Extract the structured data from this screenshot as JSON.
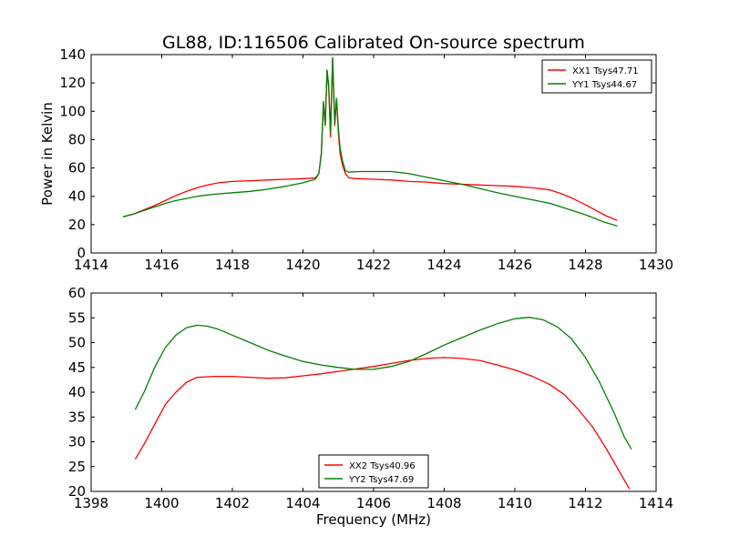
{
  "figure_title": "GL88, ID:116506 Calibrated On-source spectrum",
  "colors": {
    "XX": "#ff0000",
    "YY": "#008000",
    "axes": "#000000",
    "background": "#ffffff"
  },
  "chart_data": [
    {
      "type": "line",
      "title": "GL88, ID:116506 Calibrated On-source spectrum",
      "xlabel": "",
      "ylabel": "Power in Kelvin",
      "xlim": [
        1414,
        1430
      ],
      "ylim": [
        0,
        140
      ],
      "xticks": [
        1414,
        1416,
        1418,
        1420,
        1422,
        1424,
        1426,
        1428,
        1430
      ],
      "yticks": [
        0,
        20,
        40,
        60,
        80,
        100,
        120,
        140
      ],
      "grid": false,
      "legend_position": "top-right",
      "series": [
        {
          "name": "XX1 Tsys47.71",
          "color": "#ff0000",
          "points": [
            [
              1414.9,
              25.5
            ],
            [
              1415.2,
              27.5
            ],
            [
              1415.5,
              30.5
            ],
            [
              1415.8,
              33.5
            ],
            [
              1416.1,
              37
            ],
            [
              1416.4,
              40.5
            ],
            [
              1416.7,
              43.5
            ],
            [
              1417.0,
              46
            ],
            [
              1417.3,
              48
            ],
            [
              1417.6,
              49.5
            ],
            [
              1418.0,
              50.5
            ],
            [
              1418.5,
              51
            ],
            [
              1419.0,
              51.5
            ],
            [
              1419.5,
              52
            ],
            [
              1420.0,
              52.5
            ],
            [
              1420.35,
              53
            ],
            [
              1420.45,
              56
            ],
            [
              1420.52,
              70
            ],
            [
              1420.58,
              106
            ],
            [
              1420.63,
              90
            ],
            [
              1420.68,
              129
            ],
            [
              1420.73,
              115
            ],
            [
              1420.78,
              82
            ],
            [
              1420.84,
              137
            ],
            [
              1420.9,
              90
            ],
            [
              1420.95,
              109
            ],
            [
              1421.0,
              85
            ],
            [
              1421.05,
              70
            ],
            [
              1421.12,
              62
            ],
            [
              1421.2,
              56
            ],
            [
              1421.3,
              53
            ],
            [
              1421.5,
              52.5
            ],
            [
              1422.0,
              52
            ],
            [
              1422.5,
              51.5
            ],
            [
              1423.0,
              50.5
            ],
            [
              1423.5,
              50
            ],
            [
              1424.0,
              49
            ],
            [
              1424.5,
              48.5
            ],
            [
              1425.0,
              48
            ],
            [
              1425.5,
              47.5
            ],
            [
              1426.0,
              47
            ],
            [
              1426.5,
              46
            ],
            [
              1427.0,
              44.5
            ],
            [
              1427.3,
              42
            ],
            [
              1427.6,
              39
            ],
            [
              1428.0,
              34
            ],
            [
              1428.3,
              30
            ],
            [
              1428.6,
              26
            ],
            [
              1428.9,
              23
            ]
          ]
        },
        {
          "name": "YY1 Tsys44.67",
          "color": "#008000",
          "points": [
            [
              1414.9,
              25.5
            ],
            [
              1415.2,
              27.5
            ],
            [
              1415.5,
              30
            ],
            [
              1415.8,
              32.5
            ],
            [
              1416.1,
              35
            ],
            [
              1416.4,
              37
            ],
            [
              1416.7,
              38.5
            ],
            [
              1417.0,
              40
            ],
            [
              1417.5,
              41.5
            ],
            [
              1418.0,
              42.5
            ],
            [
              1418.5,
              43.5
            ],
            [
              1419.0,
              45
            ],
            [
              1419.5,
              47
            ],
            [
              1420.0,
              49.5
            ],
            [
              1420.35,
              52
            ],
            [
              1420.45,
              56
            ],
            [
              1420.52,
              70
            ],
            [
              1420.58,
              107
            ],
            [
              1420.63,
              90
            ],
            [
              1420.68,
              129
            ],
            [
              1420.73,
              118
            ],
            [
              1420.78,
              85
            ],
            [
              1420.84,
              138
            ],
            [
              1420.9,
              92
            ],
            [
              1420.95,
              109
            ],
            [
              1421.0,
              88
            ],
            [
              1421.05,
              74
            ],
            [
              1421.12,
              65
            ],
            [
              1421.2,
              58
            ],
            [
              1421.3,
              57
            ],
            [
              1421.6,
              57.5
            ],
            [
              1422.0,
              57.5
            ],
            [
              1422.5,
              57.5
            ],
            [
              1423.0,
              56
            ],
            [
              1423.5,
              53.5
            ],
            [
              1424.0,
              51
            ],
            [
              1424.5,
              48.5
            ],
            [
              1425.0,
              45.5
            ],
            [
              1425.5,
              42.5
            ],
            [
              1426.0,
              40
            ],
            [
              1426.5,
              37.5
            ],
            [
              1427.0,
              35
            ],
            [
              1427.5,
              31
            ],
            [
              1428.0,
              27
            ],
            [
              1428.5,
              22
            ],
            [
              1428.9,
              19
            ]
          ]
        }
      ]
    },
    {
      "type": "line",
      "title": "",
      "xlabel": "Frequency (MHz)",
      "ylabel": "",
      "xlim": [
        1398,
        1414
      ],
      "ylim": [
        20,
        60
      ],
      "xticks": [
        1398,
        1400,
        1402,
        1404,
        1406,
        1408,
        1410,
        1412,
        1414
      ],
      "yticks": [
        20,
        25,
        30,
        35,
        40,
        45,
        50,
        55,
        60
      ],
      "grid": false,
      "legend_position": "lower-center",
      "series": [
        {
          "name": "XX2 Tsys40.96",
          "color": "#ff0000",
          "points": [
            [
              1399.25,
              26.5
            ],
            [
              1399.5,
              29.5
            ],
            [
              1399.8,
              33.5
            ],
            [
              1400.1,
              37.5
            ],
            [
              1400.4,
              40
            ],
            [
              1400.7,
              42
            ],
            [
              1401.0,
              43
            ],
            [
              1401.5,
              43.2
            ],
            [
              1402.0,
              43.2
            ],
            [
              1402.5,
              43
            ],
            [
              1403.0,
              42.8
            ],
            [
              1403.5,
              42.9
            ],
            [
              1404.0,
              43.3
            ],
            [
              1404.5,
              43.7
            ],
            [
              1405.0,
              44.2
            ],
            [
              1405.5,
              44.7
            ],
            [
              1406.0,
              45.2
            ],
            [
              1406.5,
              45.8
            ],
            [
              1407.0,
              46.4
            ],
            [
              1407.5,
              46.8
            ],
            [
              1408.0,
              47
            ],
            [
              1408.5,
              46.8
            ],
            [
              1409.0,
              46.4
            ],
            [
              1409.5,
              45.5
            ],
            [
              1410.0,
              44.5
            ],
            [
              1410.5,
              43.2
            ],
            [
              1411.0,
              41.5
            ],
            [
              1411.4,
              39.5
            ],
            [
              1411.8,
              36.5
            ],
            [
              1412.2,
              33
            ],
            [
              1412.6,
              28.5
            ],
            [
              1413.0,
              23.5
            ],
            [
              1413.25,
              20.5
            ]
          ]
        },
        {
          "name": "YY2 Tsys47.69",
          "color": "#008000",
          "points": [
            [
              1399.25,
              36.5
            ],
            [
              1399.5,
              40
            ],
            [
              1399.8,
              45
            ],
            [
              1400.1,
              49
            ],
            [
              1400.4,
              51.5
            ],
            [
              1400.7,
              53
            ],
            [
              1401.0,
              53.5
            ],
            [
              1401.3,
              53.3
            ],
            [
              1401.6,
              52.7
            ],
            [
              1402.0,
              51.5
            ],
            [
              1402.5,
              50
            ],
            [
              1403.0,
              48.5
            ],
            [
              1403.5,
              47.3
            ],
            [
              1404.0,
              46.2
            ],
            [
              1404.5,
              45.5
            ],
            [
              1405.0,
              45
            ],
            [
              1405.5,
              44.6
            ],
            [
              1406.0,
              44.6
            ],
            [
              1406.5,
              45.2
            ],
            [
              1407.0,
              46.2
            ],
            [
              1407.5,
              47.8
            ],
            [
              1408.0,
              49.5
            ],
            [
              1408.5,
              51
            ],
            [
              1409.0,
              52.5
            ],
            [
              1409.5,
              53.8
            ],
            [
              1410.0,
              54.8
            ],
            [
              1410.4,
              55.1
            ],
            [
              1410.8,
              54.6
            ],
            [
              1411.2,
              53.2
            ],
            [
              1411.6,
              50.8
            ],
            [
              1412.0,
              47
            ],
            [
              1412.4,
              42
            ],
            [
              1412.8,
              36
            ],
            [
              1413.1,
              31
            ],
            [
              1413.3,
              28.5
            ]
          ]
        }
      ]
    }
  ]
}
